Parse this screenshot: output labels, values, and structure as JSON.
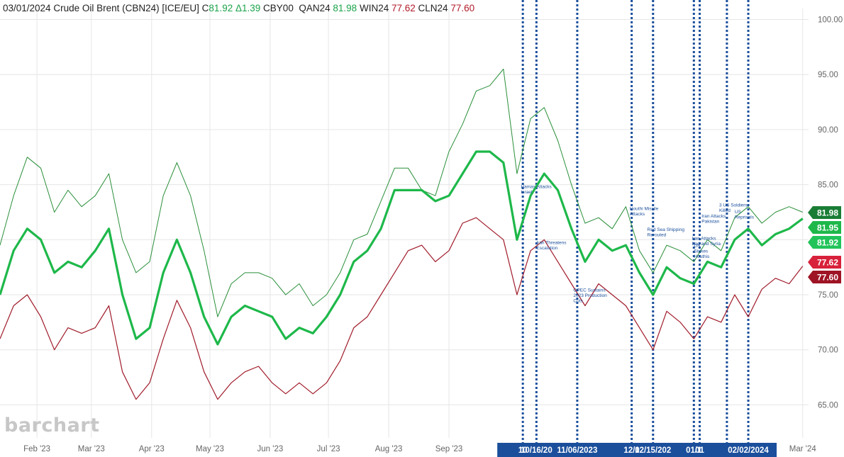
{
  "header": {
    "date": "03/01/2024",
    "name": "Crude Oil Brent (CBN24) [ICE/EU]",
    "c_label": "C",
    "c_value": "81.92",
    "change": "Δ1.39",
    "cby": "CBY00",
    "qan_label": "QAN24",
    "qan_value": "81.98",
    "win_label": "WIN24",
    "win_value": "77.62",
    "cln_label": "CLN24",
    "cln_value": "77.60"
  },
  "logo": "barchart",
  "colors": {
    "upper": "#2a8f3a",
    "main": "#1eb84a",
    "lower": "#a01b2a",
    "event_line": "#1b4f9c",
    "event_box": "#1b4f9c",
    "grid": "#e6e6e6",
    "axis_text": "#666666",
    "annotation_text": "#1b4f9c"
  },
  "chart_data": {
    "type": "line",
    "ylim": [
      62,
      101
    ],
    "xlim": [
      "2023-01-13",
      "2024-03-04"
    ],
    "y_ticks": [
      "100.00",
      "95.00",
      "90.00",
      "85.00",
      "80.00",
      "75.00",
      "70.00",
      "65.00"
    ],
    "y_tick_values": [
      100,
      95,
      90,
      85,
      80,
      75,
      70,
      65
    ],
    "x_ticks": [
      {
        "label": "Feb '23",
        "date": "2023-02-01"
      },
      {
        "label": "Mar '23",
        "date": "2023-03-01"
      },
      {
        "label": "Apr '23",
        "date": "2023-04-01"
      },
      {
        "label": "May '23",
        "date": "2023-05-01"
      },
      {
        "label": "Jun '23",
        "date": "2023-06-01"
      },
      {
        "label": "Jul '23",
        "date": "2023-07-01"
      },
      {
        "label": "Aug '23",
        "date": "2023-08-01"
      },
      {
        "label": "Sep '23",
        "date": "2023-09-01"
      },
      {
        "label": "Mar '24",
        "date": "2024-03-01"
      }
    ],
    "series": [
      {
        "key": "upper",
        "x": [
          "2023-01-13",
          "2023-01-20",
          "2023-01-27",
          "2023-02-03",
          "2023-02-10",
          "2023-02-17",
          "2023-02-24",
          "2023-03-03",
          "2023-03-10",
          "2023-03-17",
          "2023-03-24",
          "2023-03-31",
          "2023-04-07",
          "2023-04-14",
          "2023-04-21",
          "2023-04-28",
          "2023-05-05",
          "2023-05-12",
          "2023-05-19",
          "2023-05-26",
          "2023-06-02",
          "2023-06-09",
          "2023-06-16",
          "2023-06-23",
          "2023-06-30",
          "2023-07-07",
          "2023-07-14",
          "2023-07-21",
          "2023-07-28",
          "2023-08-04",
          "2023-08-11",
          "2023-08-18",
          "2023-08-25",
          "2023-09-01",
          "2023-09-08",
          "2023-09-15",
          "2023-09-22",
          "2023-09-29",
          "2023-10-06",
          "2023-10-13",
          "2023-10-20",
          "2023-10-27",
          "2023-11-03",
          "2023-11-10",
          "2023-11-17",
          "2023-11-24",
          "2023-12-01",
          "2023-12-08",
          "2023-12-15",
          "2023-12-22",
          "2023-12-29",
          "2024-01-05",
          "2024-01-12",
          "2024-01-19",
          "2024-01-26",
          "2024-02-02",
          "2024-02-09",
          "2024-02-16",
          "2024-02-23",
          "2024-03-01"
        ],
        "values": [
          79.5,
          84,
          87.5,
          86.5,
          82.5,
          84.5,
          83,
          84,
          86,
          80,
          77,
          78,
          84,
          87,
          84,
          79,
          73,
          76,
          77,
          77,
          76.5,
          75,
          76,
          74,
          75,
          77,
          80,
          80.5,
          83.5,
          86.5,
          86.5,
          84.5,
          84,
          88,
          90.5,
          93.5,
          94,
          95.5,
          86,
          91,
          92,
          89,
          85,
          81.5,
          82,
          81,
          83,
          79,
          77,
          79.5,
          79,
          78,
          80,
          79,
          82,
          83,
          81.5,
          82.5,
          83,
          82.5
        ]
      },
      {
        "key": "main",
        "x": [
          "2023-01-13",
          "2023-01-20",
          "2023-01-27",
          "2023-02-03",
          "2023-02-10",
          "2023-02-17",
          "2023-02-24",
          "2023-03-03",
          "2023-03-10",
          "2023-03-17",
          "2023-03-24",
          "2023-03-31",
          "2023-04-07",
          "2023-04-14",
          "2023-04-21",
          "2023-04-28",
          "2023-05-05",
          "2023-05-12",
          "2023-05-19",
          "2023-05-26",
          "2023-06-02",
          "2023-06-09",
          "2023-06-16",
          "2023-06-23",
          "2023-06-30",
          "2023-07-07",
          "2023-07-14",
          "2023-07-21",
          "2023-07-28",
          "2023-08-04",
          "2023-08-11",
          "2023-08-18",
          "2023-08-25",
          "2023-09-01",
          "2023-09-08",
          "2023-09-15",
          "2023-09-22",
          "2023-09-29",
          "2023-10-06",
          "2023-10-13",
          "2023-10-20",
          "2023-10-27",
          "2023-11-03",
          "2023-11-10",
          "2023-11-17",
          "2023-11-24",
          "2023-12-01",
          "2023-12-08",
          "2023-12-15",
          "2023-12-22",
          "2023-12-29",
          "2024-01-05",
          "2024-01-12",
          "2024-01-19",
          "2024-01-26",
          "2024-02-02",
          "2024-02-09",
          "2024-02-16",
          "2024-02-23",
          "2024-03-01"
        ],
        "values": [
          75,
          79,
          81,
          80,
          77,
          78,
          77.5,
          79,
          81,
          75,
          71,
          72,
          77,
          80,
          77,
          73,
          70.5,
          73,
          74,
          73.5,
          73,
          71,
          72,
          71.5,
          73,
          75,
          78,
          79,
          81,
          84.5,
          84.5,
          84.5,
          83.5,
          84,
          86,
          88,
          88,
          87,
          80,
          84,
          86,
          84.5,
          81,
          78,
          80,
          79,
          79.5,
          77,
          75,
          77.5,
          76.5,
          76,
          78,
          77.5,
          80,
          81,
          79.5,
          80.5,
          81,
          81.92
        ]
      },
      {
        "key": "lower",
        "x": [
          "2023-01-13",
          "2023-01-20",
          "2023-01-27",
          "2023-02-03",
          "2023-02-10",
          "2023-02-17",
          "2023-02-24",
          "2023-03-03",
          "2023-03-10",
          "2023-03-17",
          "2023-03-24",
          "2023-03-31",
          "2023-04-07",
          "2023-04-14",
          "2023-04-21",
          "2023-04-28",
          "2023-05-05",
          "2023-05-12",
          "2023-05-19",
          "2023-05-26",
          "2023-06-02",
          "2023-06-09",
          "2023-06-16",
          "2023-06-23",
          "2023-06-30",
          "2023-07-07",
          "2023-07-14",
          "2023-07-21",
          "2023-07-28",
          "2023-08-04",
          "2023-08-11",
          "2023-08-18",
          "2023-08-25",
          "2023-09-01",
          "2023-09-08",
          "2023-09-15",
          "2023-09-22",
          "2023-09-29",
          "2023-10-06",
          "2023-10-13",
          "2023-10-20",
          "2023-10-27",
          "2023-11-03",
          "2023-11-10",
          "2023-11-17",
          "2023-11-24",
          "2023-12-01",
          "2023-12-08",
          "2023-12-15",
          "2023-12-22",
          "2023-12-29",
          "2024-01-05",
          "2024-01-12",
          "2024-01-19",
          "2024-01-26",
          "2024-02-02",
          "2024-02-09",
          "2024-02-16",
          "2024-02-23",
          "2024-03-01"
        ],
        "values": [
          71,
          74,
          75,
          73,
          70,
          72,
          71.5,
          72,
          74,
          68,
          65.5,
          67,
          71,
          74.5,
          72,
          68,
          65.5,
          67,
          68,
          68.5,
          67,
          66,
          67,
          66,
          67,
          69,
          72,
          73,
          75,
          77,
          79,
          79.5,
          78,
          79,
          81.5,
          82,
          81,
          80,
          75,
          79,
          80,
          78,
          76,
          74,
          76,
          75,
          74,
          72,
          70,
          73.5,
          72.5,
          71,
          73,
          72.5,
          75,
          73,
          75.5,
          76.5,
          76,
          77.6
        ]
      }
    ],
    "event_lines": [
      "2023-10-09",
      "2023-10-16",
      "2023-11-06",
      "2023-12-04",
      "2023-12-15",
      "2024-01-05",
      "2024-01-08",
      "2024-01-22",
      "2024-02-02"
    ],
    "date_labels": [
      {
        "label": "10",
        "date": "2023-10-09"
      },
      {
        "label": "10/16/20",
        "date": "2023-10-16"
      },
      {
        "label": "11/06/2023",
        "date": "2023-11-06"
      },
      {
        "label": "12/0",
        "date": "2023-12-04"
      },
      {
        "label": "12/15/202",
        "date": "2023-12-15"
      },
      {
        "label": "01/1",
        "date": "2024-01-05"
      },
      {
        "label": "01",
        "date": "2024-01-08"
      },
      {
        "label": "02/02/2024",
        "date": "2024-02-02"
      }
    ],
    "annotations": [
      {
        "date": "2023-10-08",
        "value": 84.7,
        "lines": [
          "Hamas Attacks",
          "Israel"
        ]
      },
      {
        "date": "2023-10-16",
        "value": 79.6,
        "lines": [
          "Iran Threatens",
          "Escalation"
        ]
      },
      {
        "date": "2023-11-04",
        "value": 75.3,
        "lines": [
          "OPEC Sustains",
          "2023 Production",
          "Cuts"
        ]
      },
      {
        "date": "2023-12-03",
        "value": 82.7,
        "lines": [
          "Houthi Missile",
          "Attacks"
        ]
      },
      {
        "date": "2023-12-12",
        "value": 80.8,
        "lines": [
          "Red Sea Shipping",
          "Rerouted"
        ]
      },
      {
        "date": "2024-01-04",
        "value": 80.0,
        "lines": [
          "Iran Attacks",
          "Iraq and Syria"
        ]
      },
      {
        "date": "2024-01-05",
        "value": 79.3,
        "lines": [
          "US",
          "Strikes",
          "Houthis"
        ]
      },
      {
        "date": "2024-01-09",
        "value": 82.0,
        "lines": [
          "Iran Attacks",
          "Pakistan"
        ]
      },
      {
        "date": "2024-01-18",
        "value": 83.0,
        "lines": [
          "3 US Soldiers",
          "Killed"
        ]
      },
      {
        "date": "2024-01-26",
        "value": 82.4,
        "lines": [
          "US",
          "Reprisals"
        ]
      }
    ],
    "price_tags": [
      {
        "label": "81.98",
        "value": 81.98,
        "color": "#1a7d35"
      },
      {
        "label": "81.95",
        "value": 81.95,
        "color": "#1eb84a"
      },
      {
        "label": "81.92",
        "value": 81.92,
        "color": "#22c45a"
      },
      {
        "label": "77.62",
        "value": 77.62,
        "color": "#d8213a"
      },
      {
        "label": "77.60",
        "value": 77.6,
        "color": "#9e1424"
      }
    ]
  }
}
